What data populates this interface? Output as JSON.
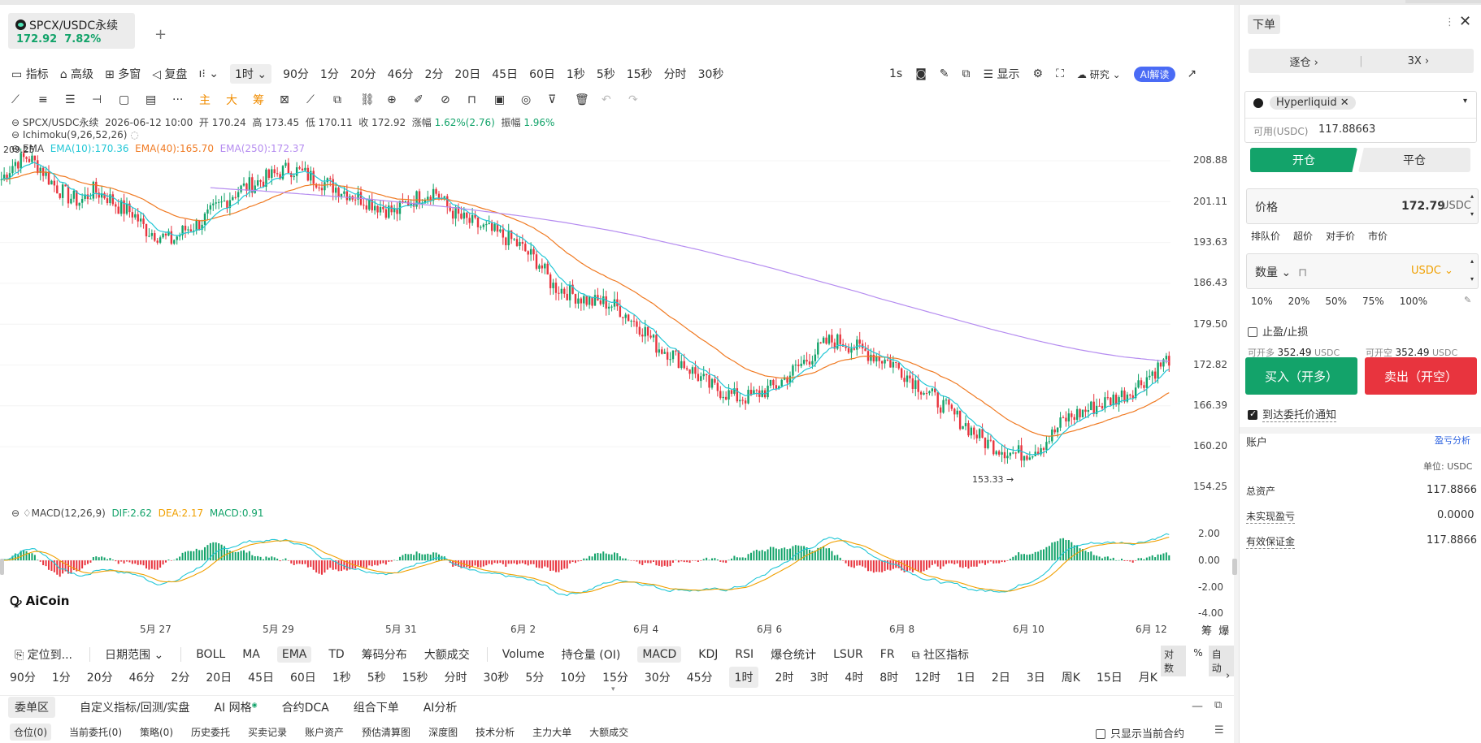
{
  "symbol": {
    "name": "SPCX/USDC永续",
    "price": "172.92",
    "change": "7.82%"
  },
  "toolbar1": [
    "指标",
    "高级",
    "多窗",
    "复盘"
  ],
  "intervals_top": {
    "selected": "1时",
    "items": [
      "90分",
      "1分",
      "20分",
      "46分",
      "2分",
      "20日",
      "45日",
      "60日",
      "1秒",
      "5秒",
      "15秒",
      "分时",
      "30秒"
    ]
  },
  "toolbar1_right": {
    "sec": "1s",
    "display": "显示",
    "research": "研究",
    "ai": "AI解读"
  },
  "draw_highlight": [
    "主",
    "大",
    "筹"
  ],
  "ohlc": {
    "symbol": "SPCX/USDC永续",
    "time": "2026-06-12 10:00",
    "open_l": "开",
    "open": "170.24",
    "high_l": "高",
    "high": "173.45",
    "low_l": "低",
    "low": "170.11",
    "close_l": "收",
    "close": "172.92",
    "chg_l": "涨幅",
    "chg": "1.62%(2.76)",
    "amp_l": "振幅",
    "amp": "1.96%"
  },
  "ichimoku": "Ichimoku(9,26,52,26)",
  "ema_legend": {
    "title": "EMA",
    "e10": "EMA(10):170.36",
    "e40": "EMA(40):165.70",
    "e250": "EMA(250):172.37"
  },
  "price_axis": [
    "208.88",
    "201.11",
    "193.63",
    "186.43",
    "179.50",
    "172.82",
    "166.39",
    "160.20",
    "154.25"
  ],
  "hi_mark": "209.25",
  "lo_mark": "153.33 →",
  "macd_legend": {
    "title": "MACD(12,26,9)",
    "dif": "DIF:2.62",
    "dea": "DEA:2.17",
    "macd": "MACD:0.91"
  },
  "macd_axis": [
    "2.00",
    "0.00",
    "-2.00",
    "-4.00"
  ],
  "logo": "AiCoin",
  "dates": [
    "5月 27",
    "5月 29",
    "5月 31",
    "6月 2",
    "6月 4",
    "6月 6",
    "6月 8",
    "6月 10",
    "6月 12"
  ],
  "axis_corner": [
    "筹",
    "爆"
  ],
  "indicator_bar": {
    "locate": "定位到...",
    "range": "日期范围",
    "items": [
      "BOLL",
      "MA",
      "EMA",
      "TD",
      "筹码分布",
      "大额成交",
      "Volume",
      "持仓量 (OI)",
      "MACD",
      "KDJ",
      "RSI",
      "爆仓统计",
      "LSUR",
      "FR",
      "社区指标"
    ],
    "active": [
      "EMA",
      "MACD"
    ],
    "right": [
      "对数",
      "%",
      "自动"
    ]
  },
  "period_bar": {
    "items": [
      "90分",
      "1分",
      "20分",
      "46分",
      "2分",
      "20日",
      "45日",
      "60日",
      "1秒",
      "5秒",
      "15秒",
      "分时",
      "30秒",
      "5分",
      "10分",
      "15分",
      "30分",
      "45分",
      "1时",
      "2时",
      "3时",
      "4时",
      "8时",
      "12时",
      "1日",
      "2日",
      "3日",
      "周K",
      "15日",
      "月K"
    ],
    "active": "1时"
  },
  "bottom_tabs": [
    "委单区",
    "自定义指标/回测/实盘",
    "AI 网格",
    "合约DCA",
    "组合下单",
    "AI分析"
  ],
  "sub_tabs": [
    "仓位(0)",
    "当前委托(0)",
    "策略(0)",
    "历史委托",
    "买卖记录",
    "账户资产",
    "预估清算图",
    "深度图",
    "技术分析",
    "主力大单",
    "大额成交"
  ],
  "only_current": "只显示当前合约",
  "order": {
    "title": "下单",
    "margin_mode": "逐仓",
    "leverage": "3X",
    "exchange": "Hyperliquid",
    "avail_label": "可用(USDC)",
    "avail": "117.88663",
    "open_tab": "开仓",
    "close_tab": "平仓",
    "price_label": "价格",
    "price": "172.79",
    "unit": "USDC",
    "price_opts": [
      "排队价",
      "超价",
      "对手价",
      "市价"
    ],
    "qty_label": "数量",
    "qty_unit": "USDC",
    "pcts": [
      "10%",
      "20%",
      "50%",
      "75%",
      "100%"
    ],
    "tpsl": "止盈/止损",
    "can_long_l": "可开多",
    "can_long": "352.49",
    "can_short_l": "可开空",
    "can_short": "352.49",
    "buy": "买入（开多）",
    "sell": "卖出（开空）",
    "notify": "到达委托价通知"
  },
  "account": {
    "title": "账户",
    "pnl_link": "盈亏分析",
    "unit": "单位: USDC",
    "rows": [
      {
        "label": "总资产",
        "value": "117.8866"
      },
      {
        "label": "未实现盈亏",
        "value": "0.0000"
      },
      {
        "label": "有效保证金",
        "value": "117.8866"
      }
    ]
  },
  "colors": {
    "up": "#13a36a",
    "down": "#e8343e",
    "ema10": "#22c7d6",
    "ema40": "#f07a22",
    "ema250": "#b58cf0",
    "ai": "#4a6bf5"
  },
  "chart_data": {
    "type": "candlestick",
    "price_range": [
      150.5,
      211.5
    ],
    "close_path": [
      205,
      208,
      209,
      207,
      204,
      202,
      201,
      203,
      202,
      200,
      199,
      196,
      195,
      194,
      196,
      197,
      199,
      201,
      203,
      204,
      205,
      206,
      207,
      206,
      205,
      204,
      203,
      202,
      201,
      200,
      199,
      201,
      202,
      203,
      200,
      198,
      197,
      196,
      195,
      194,
      192,
      190,
      186,
      185,
      184,
      183,
      183,
      182,
      180,
      178,
      175,
      174,
      172,
      170,
      168,
      167,
      166,
      166,
      167,
      168,
      170,
      172,
      174,
      176,
      176,
      175,
      174,
      173,
      172,
      170,
      168,
      166,
      164,
      162,
      160,
      158,
      157,
      156,
      156,
      157,
      159,
      162,
      163,
      164,
      165,
      166,
      167,
      169,
      171,
      173
    ],
    "ema250_path": [
      203.5,
      203.2,
      203,
      202.7,
      202.4,
      202.1,
      201.8,
      201.5,
      201.1,
      200.7,
      200.3,
      199.9,
      199.4,
      198.9,
      198.4,
      197.8,
      197.2,
      196.5,
      195.8,
      195.0,
      194.1,
      193.2,
      192.3,
      191.3,
      190.3,
      189.3,
      188.2,
      187.1,
      186.0,
      184.9,
      183.7,
      182.6,
      181.5,
      180.4,
      179.3,
      178.2,
      177.2,
      176.2,
      175.3,
      174.5,
      173.8,
      173.2,
      172.8,
      172.4
    ],
    "macd_range": [
      -4.5,
      2.8
    ]
  }
}
